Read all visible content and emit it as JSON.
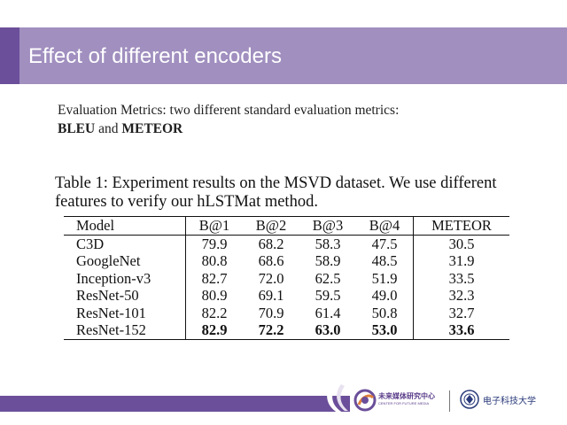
{
  "slide": {
    "title": "Effect of different encoders"
  },
  "metrics": {
    "text_before": "Evaluation Metrics: two different standard evaluation metrics:",
    "metric1": "BLEU",
    "connector": "and",
    "metric2": "METEOR"
  },
  "table": {
    "caption": "Table 1: Experiment results on the MSVD dataset. We use different features to verify our hLSTMat method.",
    "headers": [
      "Model",
      "B@1",
      "B@2",
      "B@3",
      "B@4",
      "METEOR"
    ],
    "rows": [
      {
        "model": "C3D",
        "b1": "79.9",
        "b2": "68.2",
        "b3": "58.3",
        "b4": "47.5",
        "meteor": "30.5"
      },
      {
        "model": "GoogleNet",
        "b1": "80.8",
        "b2": "68.6",
        "b3": "58.9",
        "b4": "48.5",
        "meteor": "31.9"
      },
      {
        "model": "Inception-v3",
        "b1": "82.7",
        "b2": "72.0",
        "b3": "62.5",
        "b4": "51.9",
        "meteor": "33.5"
      },
      {
        "model": "ResNet-50",
        "b1": "80.9",
        "b2": "69.1",
        "b3": "59.5",
        "b4": "49.0",
        "meteor": "32.3"
      },
      {
        "model": "ResNet-101",
        "b1": "82.2",
        "b2": "70.9",
        "b3": "61.4",
        "b4": "50.8",
        "meteor": "32.7"
      },
      {
        "model": "ResNet-152",
        "b1": "82.9",
        "b2": "72.2",
        "b3": "63.0",
        "b4": "53.0",
        "meteor": "33.6"
      }
    ]
  },
  "footer": {
    "logo1_cn": "未来媒体研究中心",
    "logo1_en": "CENTER FOR FUTURE MEDIA",
    "logo2_text": "电子科技大学"
  },
  "colors": {
    "title_bar": "#a08fbf",
    "accent": "#6b4f9a"
  }
}
